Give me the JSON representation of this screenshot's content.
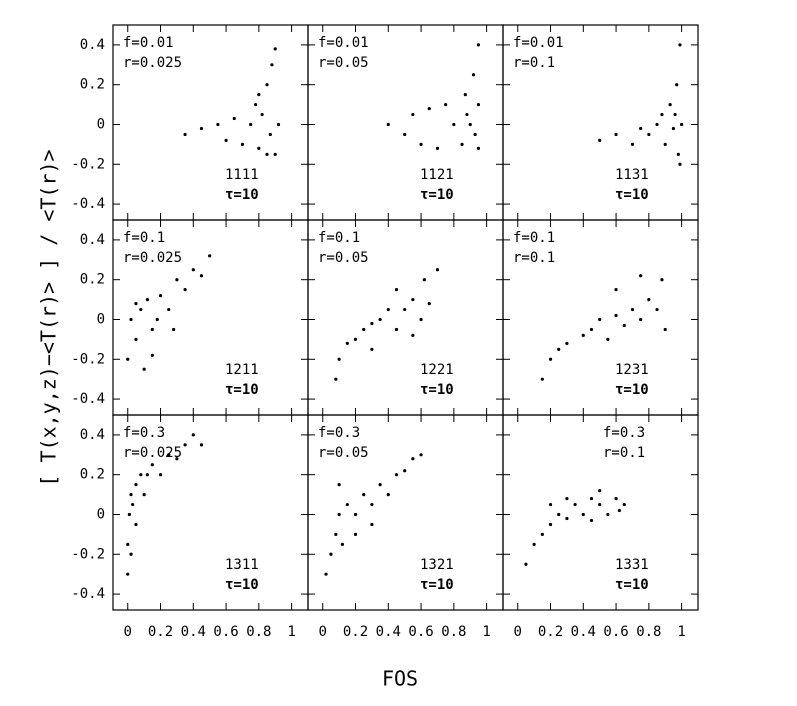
{
  "figure": {
    "xlabel": "FOS",
    "ylabel": "[ T(x,y,z)−<T(r)> ] / <T(r)>"
  },
  "chart_data": [
    {
      "type": "scatter",
      "f_label": "f=0.01",
      "r_label": "r=0.025",
      "id_label": "1111",
      "tau_label": "τ=10",
      "x": [
        0.35,
        0.45,
        0.55,
        0.6,
        0.65,
        0.7,
        0.75,
        0.78,
        0.8,
        0.82,
        0.85,
        0.87,
        0.88,
        0.9,
        0.9,
        0.92,
        0.85,
        0.8
      ],
      "y": [
        -0.05,
        -0.02,
        0.0,
        -0.08,
        0.03,
        -0.1,
        0.0,
        0.1,
        -0.12,
        0.05,
        0.2,
        -0.05,
        0.3,
        0.38,
        -0.15,
        0.0,
        -0.15,
        0.15
      ],
      "xlim": [
        -0.09,
        1.1
      ],
      "ylim": [
        -0.48,
        0.5
      ],
      "xticks": [
        0,
        0.2,
        0.4,
        0.6,
        0.8,
        1
      ],
      "yticks": [
        -0.4,
        -0.2,
        0,
        0.2,
        0.4
      ]
    },
    {
      "type": "scatter",
      "f_label": "f=0.01",
      "r_label": "r=0.05",
      "id_label": "1121",
      "tau_label": "τ=10",
      "x": [
        0.4,
        0.5,
        0.55,
        0.6,
        0.65,
        0.7,
        0.75,
        0.8,
        0.85,
        0.87,
        0.9,
        0.92,
        0.95,
        0.95,
        0.93,
        0.88,
        0.95
      ],
      "y": [
        0.0,
        -0.05,
        0.05,
        -0.1,
        0.08,
        -0.12,
        0.1,
        0.0,
        -0.1,
        0.15,
        0.0,
        0.25,
        0.4,
        -0.12,
        -0.05,
        0.05,
        0.1
      ],
      "xlim": [
        -0.09,
        1.1
      ],
      "ylim": [
        -0.48,
        0.5
      ],
      "xticks": [
        0,
        0.2,
        0.4,
        0.6,
        0.8,
        1
      ],
      "yticks": [
        -0.4,
        -0.2,
        0,
        0.2,
        0.4
      ]
    },
    {
      "type": "scatter",
      "f_label": "f=0.01",
      "r_label": "r=0.1",
      "id_label": "1131",
      "tau_label": "τ=10",
      "x": [
        0.5,
        0.6,
        0.7,
        0.75,
        0.8,
        0.85,
        0.88,
        0.9,
        0.93,
        0.95,
        0.97,
        0.98,
        0.99,
        1.0,
        0.99,
        0.96
      ],
      "y": [
        -0.08,
        -0.05,
        -0.1,
        -0.02,
        -0.05,
        0.0,
        0.05,
        -0.1,
        0.1,
        -0.02,
        0.2,
        -0.15,
        0.4,
        0.0,
        -0.2,
        0.05
      ],
      "xlim": [
        -0.09,
        1.1
      ],
      "ylim": [
        -0.48,
        0.5
      ],
      "xticks": [
        0,
        0.2,
        0.4,
        0.6,
        0.8,
        1
      ],
      "yticks": [
        -0.4,
        -0.2,
        0,
        0.2,
        0.4
      ]
    },
    {
      "type": "scatter",
      "f_label": "f=0.1",
      "r_label": "r=0.025",
      "id_label": "1211",
      "tau_label": "τ=10",
      "x": [
        0.0,
        0.02,
        0.05,
        0.08,
        0.1,
        0.12,
        0.15,
        0.18,
        0.2,
        0.25,
        0.3,
        0.35,
        0.4,
        0.45,
        0.5,
        0.05,
        0.15,
        0.28
      ],
      "y": [
        -0.2,
        0.0,
        -0.1,
        0.05,
        -0.25,
        0.1,
        -0.05,
        0.0,
        0.12,
        0.05,
        0.2,
        0.15,
        0.25,
        0.22,
        0.32,
        0.08,
        -0.18,
        -0.05
      ],
      "xlim": [
        -0.09,
        1.1
      ],
      "ylim": [
        -0.48,
        0.5
      ],
      "xticks": [
        0,
        0.2,
        0.4,
        0.6,
        0.8,
        1
      ],
      "yticks": [
        -0.4,
        -0.2,
        0,
        0.2,
        0.4
      ]
    },
    {
      "type": "scatter",
      "f_label": "f=0.1",
      "r_label": "r=0.05",
      "id_label": "1221",
      "tau_label": "τ=10",
      "x": [
        0.08,
        0.1,
        0.15,
        0.2,
        0.25,
        0.3,
        0.35,
        0.4,
        0.45,
        0.5,
        0.55,
        0.6,
        0.62,
        0.65,
        0.7,
        0.3,
        0.45,
        0.55
      ],
      "y": [
        -0.3,
        -0.2,
        -0.12,
        -0.1,
        -0.05,
        -0.02,
        0.0,
        0.05,
        -0.05,
        0.05,
        0.1,
        0.0,
        0.2,
        0.08,
        0.25,
        -0.15,
        0.15,
        -0.08
      ],
      "xlim": [
        -0.09,
        1.1
      ],
      "ylim": [
        -0.48,
        0.5
      ],
      "xticks": [
        0,
        0.2,
        0.4,
        0.6,
        0.8,
        1
      ],
      "yticks": [
        -0.4,
        -0.2,
        0,
        0.2,
        0.4
      ]
    },
    {
      "type": "scatter",
      "f_label": "f=0.1",
      "r_label": "r=0.1",
      "id_label": "1231",
      "tau_label": "τ=10",
      "x": [
        0.15,
        0.2,
        0.25,
        0.3,
        0.4,
        0.45,
        0.5,
        0.55,
        0.6,
        0.65,
        0.7,
        0.75,
        0.8,
        0.85,
        0.88,
        0.9,
        0.6,
        0.75
      ],
      "y": [
        -0.3,
        -0.2,
        -0.15,
        -0.12,
        -0.08,
        -0.05,
        0.0,
        -0.1,
        0.02,
        -0.03,
        0.05,
        0.0,
        0.1,
        0.05,
        0.2,
        -0.05,
        0.15,
        0.22
      ],
      "xlim": [
        -0.09,
        1.1
      ],
      "ylim": [
        -0.48,
        0.5
      ],
      "xticks": [
        0,
        0.2,
        0.4,
        0.6,
        0.8,
        1
      ],
      "yticks": [
        -0.4,
        -0.2,
        0,
        0.2,
        0.4
      ]
    },
    {
      "type": "scatter",
      "f_label": "f=0.3",
      "r_label": "r=0.025",
      "id_label": "1311",
      "tau_label": "τ=10",
      "x": [
        0.0,
        0.0,
        0.01,
        0.02,
        0.02,
        0.03,
        0.05,
        0.05,
        0.08,
        0.1,
        0.12,
        0.15,
        0.2,
        0.25,
        0.3,
        0.35,
        0.4,
        0.45
      ],
      "y": [
        -0.3,
        -0.15,
        0.0,
        0.1,
        -0.2,
        0.05,
        0.15,
        -0.05,
        0.2,
        0.1,
        0.2,
        0.25,
        0.2,
        0.3,
        0.28,
        0.35,
        0.4,
        0.35
      ],
      "xlim": [
        -0.09,
        1.1
      ],
      "ylim": [
        -0.48,
        0.5
      ],
      "xticks": [
        0,
        0.2,
        0.4,
        0.6,
        0.8,
        1
      ],
      "yticks": [
        -0.4,
        -0.2,
        0,
        0.2,
        0.4
      ]
    },
    {
      "type": "scatter",
      "f_label": "f=0.3",
      "r_label": "r=0.05",
      "id_label": "1321",
      "tau_label": "τ=10",
      "x": [
        0.02,
        0.05,
        0.08,
        0.1,
        0.12,
        0.15,
        0.2,
        0.25,
        0.3,
        0.35,
        0.4,
        0.45,
        0.5,
        0.55,
        0.6,
        0.1,
        0.2,
        0.3
      ],
      "y": [
        -0.3,
        -0.2,
        -0.1,
        0.0,
        -0.15,
        0.05,
        0.0,
        0.1,
        0.05,
        0.15,
        0.1,
        0.2,
        0.22,
        0.28,
        0.3,
        0.15,
        -0.1,
        -0.05
      ],
      "xlim": [
        -0.09,
        1.1
      ],
      "ylim": [
        -0.48,
        0.5
      ],
      "xticks": [
        0,
        0.2,
        0.4,
        0.6,
        0.8,
        1
      ],
      "yticks": [
        -0.4,
        -0.2,
        0,
        0.2,
        0.4
      ]
    },
    {
      "type": "scatter",
      "f_label": "f=0.3",
      "r_label": "r=0.1",
      "id_label": "1331",
      "tau_label": "τ=10",
      "x": [
        0.05,
        0.1,
        0.15,
        0.2,
        0.25,
        0.3,
        0.35,
        0.4,
        0.45,
        0.5,
        0.55,
        0.6,
        0.62,
        0.65,
        0.3,
        0.45,
        0.2,
        0.5
      ],
      "y": [
        -0.25,
        -0.15,
        -0.1,
        -0.05,
        0.0,
        -0.02,
        0.05,
        0.0,
        0.08,
        0.05,
        0.0,
        0.08,
        0.02,
        0.05,
        0.08,
        -0.03,
        0.05,
        0.12
      ],
      "xlim": [
        -0.09,
        1.1
      ],
      "ylim": [
        -0.48,
        0.5
      ],
      "xticks": [
        0,
        0.2,
        0.4,
        0.6,
        0.8,
        1
      ],
      "yticks": [
        -0.4,
        -0.2,
        0,
        0.2,
        0.4
      ]
    }
  ]
}
